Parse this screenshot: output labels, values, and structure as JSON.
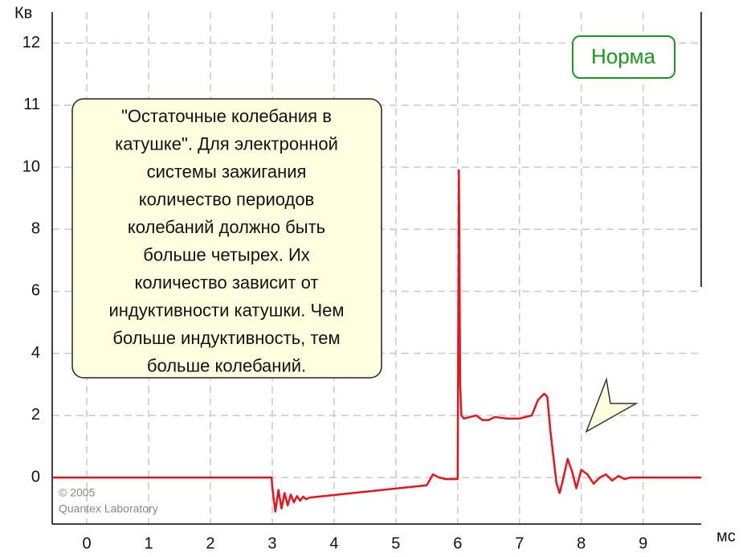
{
  "chart_data": {
    "type": "line",
    "x_label": "мс",
    "y_label": "Кв",
    "xlim": [
      -0.56,
      9.94
    ],
    "xticks": [
      0,
      1,
      2,
      3,
      4,
      5,
      6,
      7,
      8,
      9
    ],
    "ylim": [
      -1.5,
      12.5
    ],
    "yticks": [
      0,
      2,
      4,
      6,
      8,
      10,
      11,
      12
    ],
    "grid": true,
    "x": [
      -0.56,
      2.99,
      3.0,
      3.05,
      3.1,
      3.15,
      3.2,
      3.25,
      3.3,
      3.35,
      3.4,
      3.45,
      3.5,
      3.55,
      3.6,
      5.5,
      5.6,
      5.7,
      5.8,
      6.0,
      6.02,
      6.04,
      6.06,
      6.1,
      6.2,
      6.3,
      6.4,
      6.5,
      6.6,
      6.8,
      7.0,
      7.2,
      7.3,
      7.4,
      7.45,
      7.5,
      7.6,
      7.65,
      7.7,
      7.78,
      7.85,
      7.92,
      8.0,
      8.1,
      8.2,
      8.3,
      8.4,
      8.5,
      8.6,
      8.7,
      8.8,
      9.0,
      9.94
    ],
    "series": [
      {
        "color": "#e8141c",
        "values": [
          0,
          0,
          -0.3,
          -1.1,
          -0.4,
          -1.0,
          -0.5,
          -0.9,
          -0.55,
          -0.8,
          -0.6,
          -0.75,
          -0.62,
          -0.7,
          -0.65,
          -0.25,
          0.1,
          0.0,
          -0.05,
          -0.05,
          9.9,
          3.0,
          2.0,
          1.9,
          1.95,
          2.0,
          1.85,
          1.85,
          1.95,
          1.9,
          1.9,
          2.0,
          2.5,
          2.7,
          2.6,
          1.5,
          -0.2,
          -0.5,
          -0.1,
          0.6,
          0.2,
          -0.35,
          0.25,
          0.1,
          -0.2,
          0.0,
          0.1,
          -0.1,
          0.05,
          -0.05,
          0.0,
          0.0,
          0.0
        ]
      }
    ],
    "note": [
      "\"Остаточные колебания в",
      "катушке\". Для электронной",
      "системы зажигания",
      "количество периодов",
      "колебаний должно быть",
      "больше четырех. Их",
      "количество зависит от",
      "индуктивности катушки. Чем",
      "больше индуктивность, тем",
      "больше колебаний."
    ],
    "badge": "Норма",
    "copyright": [
      "© 2005",
      "Quantex Laboratory"
    ]
  }
}
